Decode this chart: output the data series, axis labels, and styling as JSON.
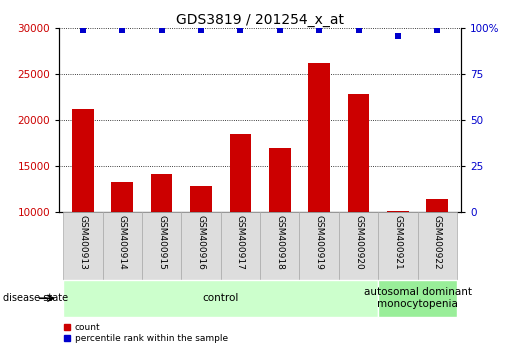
{
  "title": "GDS3819 / 201254_x_at",
  "samples": [
    "GSM400913",
    "GSM400914",
    "GSM400915",
    "GSM400916",
    "GSM400917",
    "GSM400918",
    "GSM400919",
    "GSM400920",
    "GSM400921",
    "GSM400922"
  ],
  "counts": [
    21200,
    13300,
    14200,
    12900,
    18500,
    17000,
    26200,
    22900,
    10200,
    11500
  ],
  "percentile_ranks": [
    99,
    99,
    99,
    99,
    99,
    99,
    99,
    99,
    96,
    99
  ],
  "bar_color": "#cc0000",
  "dot_color": "#0000cc",
  "ylim_left": [
    10000,
    30000
  ],
  "ylim_right": [
    0,
    100
  ],
  "yticks_left": [
    10000,
    15000,
    20000,
    25000,
    30000
  ],
  "yticks_right": [
    0,
    25,
    50,
    75,
    100
  ],
  "groups": [
    {
      "label": "control",
      "start": 0,
      "end": 8,
      "color": "#ccffcc"
    },
    {
      "label": "autosomal dominant\nmonocytopenia",
      "start": 8,
      "end": 10,
      "color": "#99ee99"
    }
  ],
  "disease_state_label": "disease state",
  "legend_items": [
    {
      "color": "#cc0000",
      "label": "count"
    },
    {
      "color": "#0000cc",
      "label": "percentile rank within the sample"
    }
  ],
  "background_color": "#ffffff",
  "bar_width": 0.55,
  "tick_label_color_left": "#cc0000",
  "tick_label_color_right": "#0000cc",
  "sample_box_color": "#dddddd",
  "sample_box_edge": "#aaaaaa",
  "title_fontsize": 10,
  "axis_fontsize": 7.5,
  "label_fontsize": 8
}
